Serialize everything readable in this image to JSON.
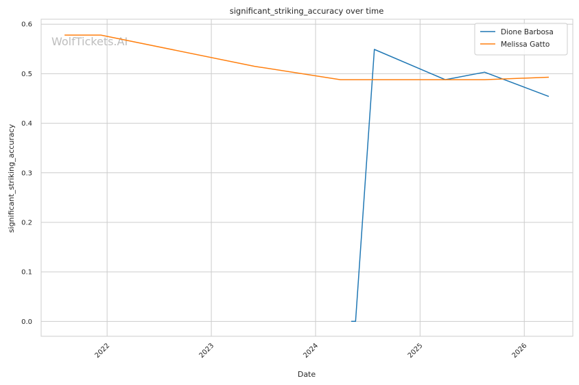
{
  "chart_data": {
    "type": "line",
    "title": "significant_striking_accuracy over time",
    "xlabel": "Date",
    "ylabel": "significant_striking_accuracy",
    "watermark": "WolfTickets.AI",
    "x_ticks": [
      "2022",
      "2023",
      "2024",
      "2025",
      "2026"
    ],
    "y_ticks": [
      "0.0",
      "0.1",
      "0.2",
      "0.3",
      "0.4",
      "0.5",
      "0.6"
    ],
    "xlim": [
      "2021-05-15",
      "2026-06-20"
    ],
    "ylim": [
      -0.03,
      0.61
    ],
    "grid": true,
    "legend_position": "top-right",
    "series": [
      {
        "name": "Dione Barbosa",
        "color": "#1f77b4",
        "points": [
          {
            "x": "2024-05-05",
            "y": 0.0
          },
          {
            "x": "2024-05-20",
            "y": 0.0
          },
          {
            "x": "2024-07-25",
            "y": 0.549
          },
          {
            "x": "2025-03-30",
            "y": 0.488
          },
          {
            "x": "2025-08-15",
            "y": 0.503
          },
          {
            "x": "2026-03-28",
            "y": 0.454
          }
        ]
      },
      {
        "name": "Melissa Gatto",
        "color": "#ff7f0e",
        "points": [
          {
            "x": "2021-08-05",
            "y": 0.578
          },
          {
            "x": "2021-12-10",
            "y": 0.578
          },
          {
            "x": "2023-06-01",
            "y": 0.515
          },
          {
            "x": "2024-03-28",
            "y": 0.488
          },
          {
            "x": "2025-03-30",
            "y": 0.488
          },
          {
            "x": "2025-08-15",
            "y": 0.488
          },
          {
            "x": "2026-03-28",
            "y": 0.493
          }
        ]
      }
    ]
  }
}
